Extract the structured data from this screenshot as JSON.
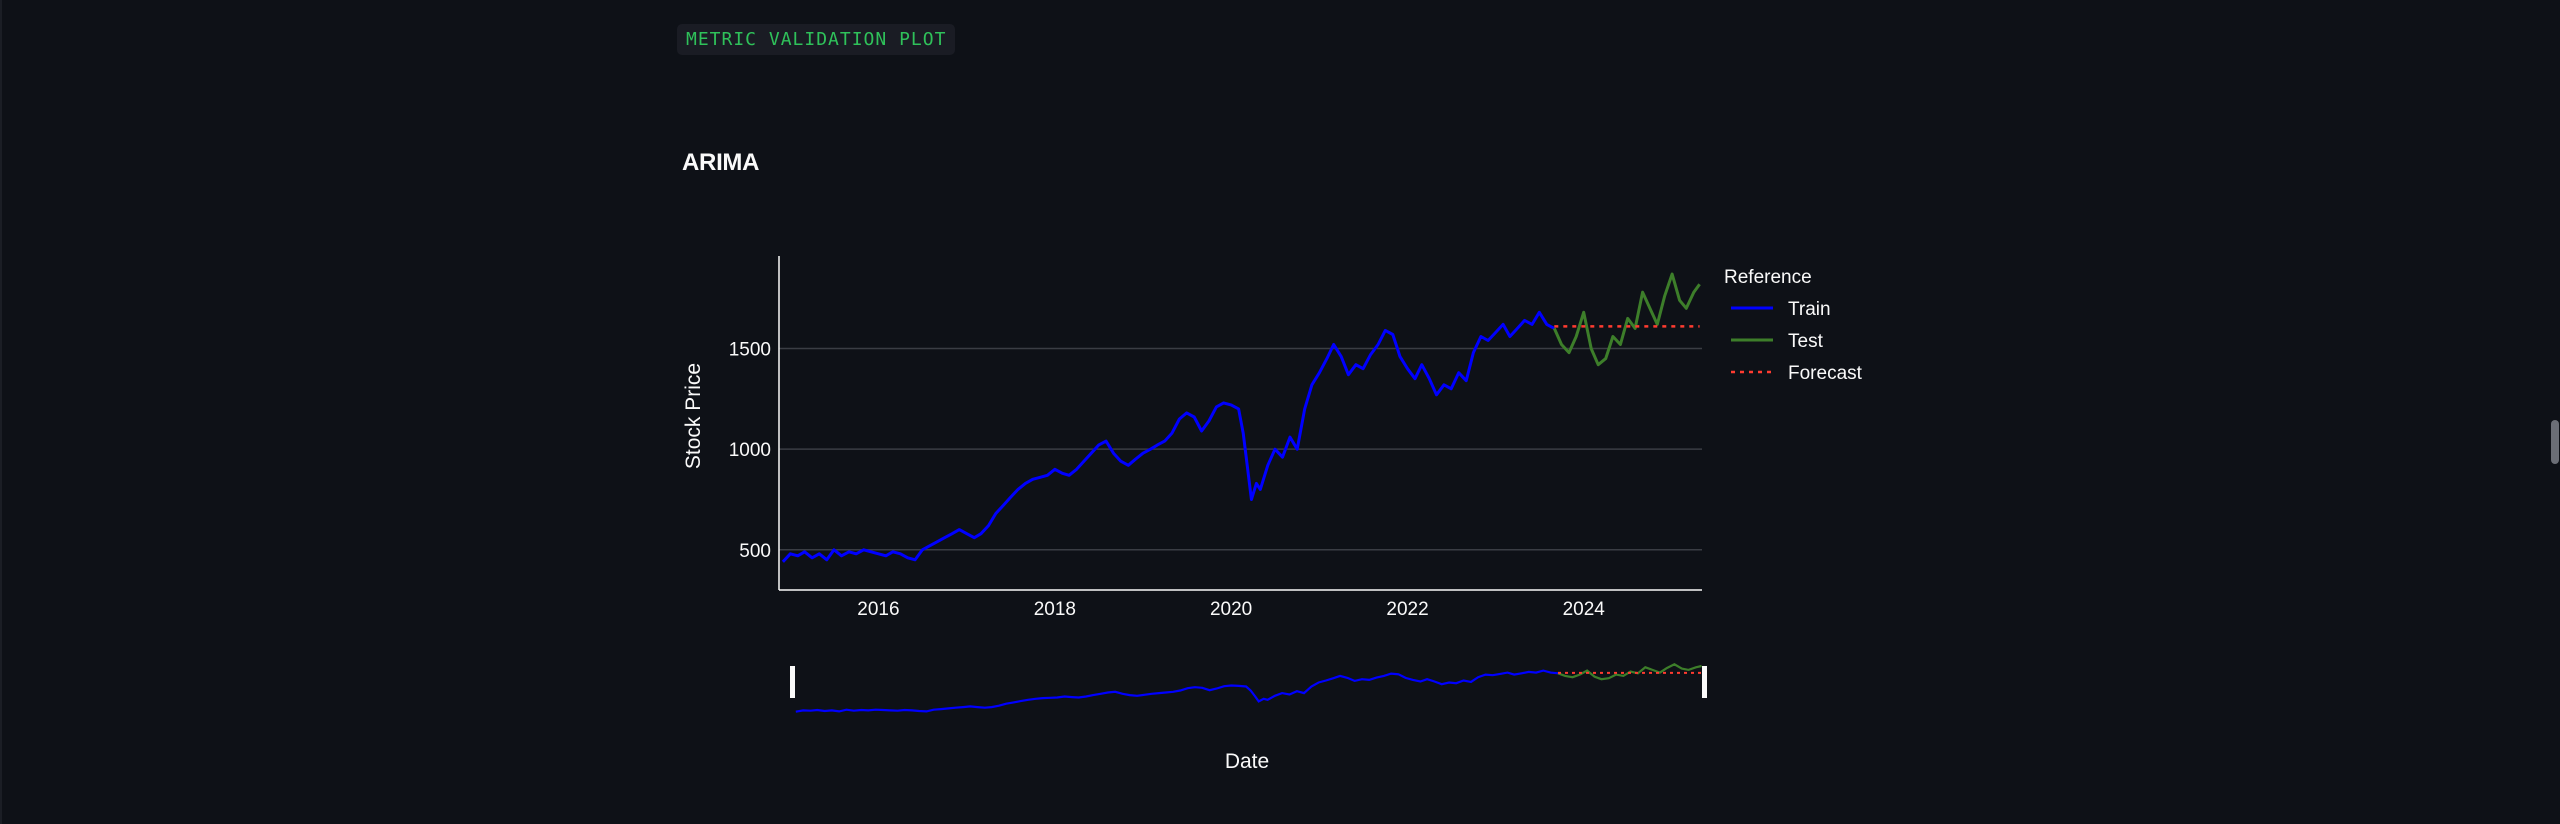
{
  "header": {
    "code_label": "METRIC VALIDATION PLOT",
    "model_title": "ARIMA"
  },
  "colors": {
    "train": "#0000ff",
    "test": "#3d7e2a",
    "forecast": "#ff3b30",
    "grid": "#3a3d44",
    "text": "#fafafa",
    "background": "#0e1117"
  },
  "chart_data": {
    "type": "line",
    "title": "",
    "xlabel": "Date",
    "ylabel": "Stock Price",
    "x_ticks": [
      "2016",
      "2018",
      "2020",
      "2022",
      "2024"
    ],
    "y_ticks": [
      500,
      1000,
      1500
    ],
    "xlim": [
      "2014-11-15",
      "2025-05-05"
    ],
    "ylim": [
      300,
      1960
    ],
    "grid": "horizontal",
    "legend": {
      "title": "Reference",
      "placement": "right",
      "entries": [
        "Train",
        "Test",
        "Forecast"
      ]
    },
    "range_slider": true,
    "series": [
      {
        "name": "Train",
        "style": "solid",
        "points": [
          [
            "2014-12-01",
            440
          ],
          [
            "2015-01-01",
            480
          ],
          [
            "2015-02-01",
            470
          ],
          [
            "2015-03-01",
            490
          ],
          [
            "2015-04-01",
            460
          ],
          [
            "2015-05-01",
            480
          ],
          [
            "2015-06-01",
            450
          ],
          [
            "2015-07-01",
            500
          ],
          [
            "2015-08-01",
            470
          ],
          [
            "2015-09-01",
            490
          ],
          [
            "2015-10-01",
            480
          ],
          [
            "2015-11-01",
            500
          ],
          [
            "2015-12-01",
            490
          ],
          [
            "2016-01-01",
            480
          ],
          [
            "2016-02-01",
            470
          ],
          [
            "2016-03-01",
            490
          ],
          [
            "2016-04-01",
            480
          ],
          [
            "2016-05-01",
            460
          ],
          [
            "2016-06-01",
            450
          ],
          [
            "2016-07-01",
            500
          ],
          [
            "2016-08-01",
            520
          ],
          [
            "2016-09-01",
            540
          ],
          [
            "2016-10-01",
            560
          ],
          [
            "2016-11-01",
            580
          ],
          [
            "2016-12-01",
            600
          ],
          [
            "2017-01-01",
            580
          ],
          [
            "2017-02-01",
            560
          ],
          [
            "2017-03-01",
            580
          ],
          [
            "2017-04-01",
            620
          ],
          [
            "2017-05-01",
            680
          ],
          [
            "2017-06-01",
            720
          ],
          [
            "2017-07-01",
            760
          ],
          [
            "2017-08-01",
            800
          ],
          [
            "2017-09-01",
            830
          ],
          [
            "2017-10-01",
            850
          ],
          [
            "2017-11-01",
            860
          ],
          [
            "2017-12-01",
            870
          ],
          [
            "2018-01-01",
            900
          ],
          [
            "2018-02-01",
            880
          ],
          [
            "2018-03-01",
            870
          ],
          [
            "2018-04-01",
            900
          ],
          [
            "2018-05-01",
            940
          ],
          [
            "2018-06-01",
            980
          ],
          [
            "2018-07-01",
            1020
          ],
          [
            "2018-08-01",
            1040
          ],
          [
            "2018-09-01",
            980
          ],
          [
            "2018-10-01",
            940
          ],
          [
            "2018-11-01",
            920
          ],
          [
            "2018-12-01",
            950
          ],
          [
            "2019-01-01",
            980
          ],
          [
            "2019-02-01",
            1000
          ],
          [
            "2019-03-01",
            1020
          ],
          [
            "2019-04-01",
            1040
          ],
          [
            "2019-05-01",
            1080
          ],
          [
            "2019-06-01",
            1150
          ],
          [
            "2019-07-01",
            1180
          ],
          [
            "2019-08-01",
            1160
          ],
          [
            "2019-09-01",
            1090
          ],
          [
            "2019-10-01",
            1140
          ],
          [
            "2019-11-01",
            1210
          ],
          [
            "2019-12-01",
            1230
          ],
          [
            "2020-01-01",
            1220
          ],
          [
            "2020-02-01",
            1200
          ],
          [
            "2020-02-20",
            1080
          ],
          [
            "2020-03-10",
            900
          ],
          [
            "2020-03-25",
            750
          ],
          [
            "2020-04-15",
            830
          ],
          [
            "2020-05-01",
            800
          ],
          [
            "2020-06-01",
            920
          ],
          [
            "2020-07-01",
            1000
          ],
          [
            "2020-08-01",
            960
          ],
          [
            "2020-09-01",
            1060
          ],
          [
            "2020-10-01",
            1000
          ],
          [
            "2020-11-01",
            1200
          ],
          [
            "2020-12-01",
            1320
          ],
          [
            "2021-01-01",
            1380
          ],
          [
            "2021-02-01",
            1450
          ],
          [
            "2021-03-01",
            1520
          ],
          [
            "2021-04-01",
            1460
          ],
          [
            "2021-05-01",
            1370
          ],
          [
            "2021-06-01",
            1420
          ],
          [
            "2021-07-01",
            1400
          ],
          [
            "2021-08-01",
            1470
          ],
          [
            "2021-09-01",
            1520
          ],
          [
            "2021-10-01",
            1590
          ],
          [
            "2021-11-01",
            1570
          ],
          [
            "2021-12-01",
            1460
          ],
          [
            "2022-01-01",
            1400
          ],
          [
            "2022-02-01",
            1350
          ],
          [
            "2022-03-01",
            1420
          ],
          [
            "2022-04-01",
            1350
          ],
          [
            "2022-05-01",
            1270
          ],
          [
            "2022-06-01",
            1320
          ],
          [
            "2022-07-01",
            1300
          ],
          [
            "2022-08-01",
            1380
          ],
          [
            "2022-09-01",
            1340
          ],
          [
            "2022-10-01",
            1480
          ],
          [
            "2022-11-01",
            1560
          ],
          [
            "2022-12-01",
            1540
          ],
          [
            "2023-01-01",
            1580
          ],
          [
            "2023-02-01",
            1620
          ],
          [
            "2023-03-01",
            1560
          ],
          [
            "2023-04-01",
            1600
          ],
          [
            "2023-05-01",
            1640
          ],
          [
            "2023-06-01",
            1620
          ],
          [
            "2023-07-01",
            1680
          ],
          [
            "2023-08-01",
            1620
          ],
          [
            "2023-09-01",
            1600
          ]
        ]
      },
      {
        "name": "Test",
        "style": "solid",
        "points": [
          [
            "2023-09-01",
            1600
          ],
          [
            "2023-10-01",
            1520
          ],
          [
            "2023-11-01",
            1480
          ],
          [
            "2023-12-01",
            1560
          ],
          [
            "2024-01-01",
            1680
          ],
          [
            "2024-02-01",
            1500
          ],
          [
            "2024-03-01",
            1420
          ],
          [
            "2024-04-01",
            1450
          ],
          [
            "2024-05-01",
            1560
          ],
          [
            "2024-06-01",
            1520
          ],
          [
            "2024-07-01",
            1650
          ],
          [
            "2024-08-01",
            1600
          ],
          [
            "2024-09-01",
            1780
          ],
          [
            "2024-10-01",
            1700
          ],
          [
            "2024-11-01",
            1620
          ],
          [
            "2024-12-01",
            1760
          ],
          [
            "2025-01-01",
            1870
          ],
          [
            "2025-02-01",
            1740
          ],
          [
            "2025-03-01",
            1700
          ],
          [
            "2025-04-01",
            1780
          ],
          [
            "2025-04-25",
            1820
          ]
        ]
      },
      {
        "name": "Forecast",
        "style": "dotted",
        "points": [
          [
            "2023-09-01",
            1610
          ],
          [
            "2025-04-25",
            1610
          ]
        ]
      }
    ]
  }
}
